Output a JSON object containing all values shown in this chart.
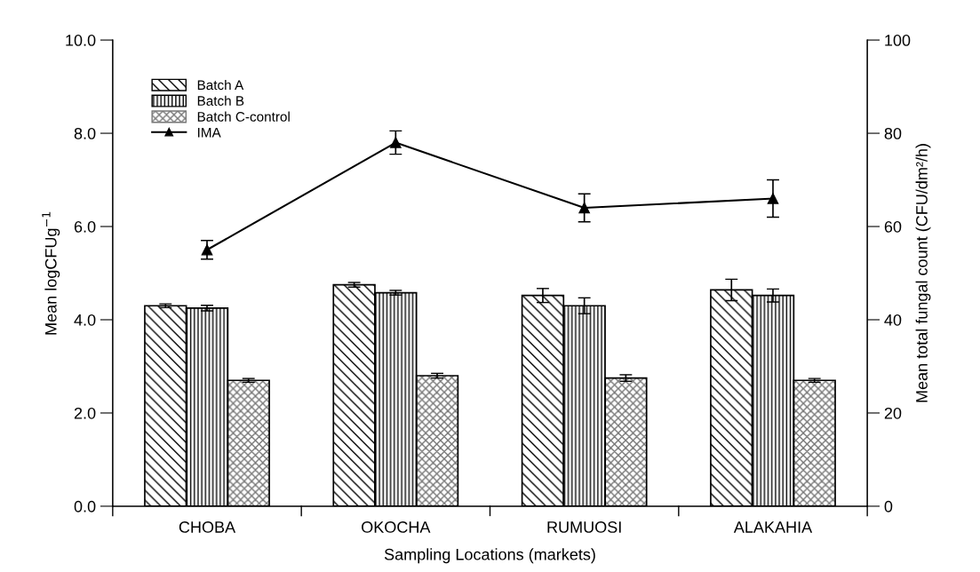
{
  "chart_data": {
    "type": "bar",
    "xlabel": "Sampling Locations (markets)",
    "ylabel": "Mean logCFUg$^{−1}$",
    "y2label": "Mean total fungal count (CFU/dm²/h)",
    "categories": [
      "CHOBA",
      "OKOCHA",
      "RUMUOSI",
      "ALAKAHIA"
    ],
    "series": [
      {
        "name": "Batch A",
        "color": "#ffffff",
        "values": [
          4.3,
          4.75,
          4.52,
          4.64
        ],
        "errors": [
          0.04,
          0.05,
          0.15,
          0.23
        ]
      },
      {
        "name": "Batch B",
        "color": "#ffffff",
        "values": [
          4.25,
          4.58,
          4.3,
          4.52
        ],
        "errors": [
          0.06,
          0.05,
          0.17,
          0.14
        ]
      },
      {
        "name": "Batch C-control",
        "color": "#ffffff",
        "values": [
          2.7,
          2.8,
          2.75,
          2.7
        ],
        "errors": [
          0.04,
          0.05,
          0.07,
          0.04
        ]
      },
      {
        "name": "IMA",
        "type": "line",
        "axis": "y2",
        "color": "#000000",
        "marker": "triangle",
        "values": [
          55,
          78,
          64,
          66
        ],
        "errors": [
          2,
          2.5,
          3,
          4
        ]
      }
    ],
    "ylim": [
      0,
      10
    ],
    "yticks": [
      {
        "value": 0,
        "label": "0.0"
      },
      {
        "value": 2,
        "label": "2.0"
      },
      {
        "value": 4,
        "label": "4.0"
      },
      {
        "value": 6,
        "label": "6.0"
      },
      {
        "value": 8,
        "label": "8.0"
      },
      {
        "value": 10,
        "label": "10.0"
      }
    ],
    "y2lim": [
      0,
      100
    ],
    "y2ticks": [
      0,
      20,
      40,
      60,
      80,
      100
    ],
    "grid": false,
    "legend": "top left"
  }
}
